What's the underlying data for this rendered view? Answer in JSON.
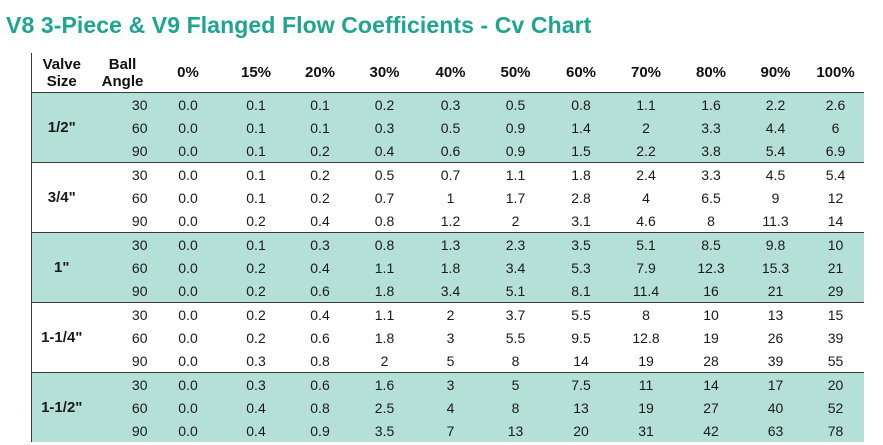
{
  "title": "V8 3-Piece & V9 Flanged Flow Coefficients - Cv Chart",
  "headers": {
    "valve_size": [
      "Valve",
      "Size"
    ],
    "ball_angle": [
      "Ball",
      "Angle"
    ],
    "percents": [
      "0%",
      "15%",
      "20%",
      "30%",
      "40%",
      "50%",
      "60%",
      "70%",
      "80%",
      "90%",
      "100%"
    ]
  },
  "groups": [
    {
      "size": "1/2\"",
      "rows": [
        {
          "angle": "30",
          "values": [
            "0.0",
            "0.1",
            "0.1",
            "0.2",
            "0.3",
            "0.5",
            "0.8",
            "1.1",
            "1.6",
            "2.2",
            "2.6"
          ]
        },
        {
          "angle": "60",
          "values": [
            "0.0",
            "0.1",
            "0.1",
            "0.3",
            "0.5",
            "0.9",
            "1.4",
            "2",
            "3.3",
            "4.4",
            "6"
          ]
        },
        {
          "angle": "90",
          "values": [
            "0.0",
            "0.1",
            "0.2",
            "0.4",
            "0.6",
            "0.9",
            "1.5",
            "2.2",
            "3.8",
            "5.4",
            "6.9"
          ]
        }
      ]
    },
    {
      "size": "3/4\"",
      "rows": [
        {
          "angle": "30",
          "values": [
            "0.0",
            "0.1",
            "0.2",
            "0.5",
            "0.7",
            "1.1",
            "1.8",
            "2.4",
            "3.3",
            "4.5",
            "5.4"
          ]
        },
        {
          "angle": "60",
          "values": [
            "0.0",
            "0.1",
            "0.2",
            "0.7",
            "1",
            "1.7",
            "2.8",
            "4",
            "6.5",
            "9",
            "12"
          ]
        },
        {
          "angle": "90",
          "values": [
            "0.0",
            "0.2",
            "0.4",
            "0.8",
            "1.2",
            "2",
            "3.1",
            "4.6",
            "8",
            "11.3",
            "14"
          ]
        }
      ]
    },
    {
      "size": "1\"",
      "rows": [
        {
          "angle": "30",
          "values": [
            "0.0",
            "0.1",
            "0.3",
            "0.8",
            "1.3",
            "2.3",
            "3.5",
            "5.1",
            "8.5",
            "9.8",
            "10"
          ]
        },
        {
          "angle": "60",
          "values": [
            "0.0",
            "0.2",
            "0.4",
            "1.1",
            "1.8",
            "3.4",
            "5.3",
            "7.9",
            "12.3",
            "15.3",
            "21"
          ]
        },
        {
          "angle": "90",
          "values": [
            "0.0",
            "0.2",
            "0.6",
            "1.8",
            "3.4",
            "5.1",
            "8.1",
            "11.4",
            "16",
            "21",
            "29"
          ]
        }
      ]
    },
    {
      "size": "1-1/4\"",
      "rows": [
        {
          "angle": "30",
          "values": [
            "0.0",
            "0.2",
            "0.4",
            "1.1",
            "2",
            "3.7",
            "5.5",
            "8",
            "10",
            "13",
            "15"
          ]
        },
        {
          "angle": "60",
          "values": [
            "0.0",
            "0.2",
            "0.6",
            "1.8",
            "3",
            "5.5",
            "9.5",
            "12.8",
            "19",
            "26",
            "39"
          ]
        },
        {
          "angle": "90",
          "values": [
            "0.0",
            "0.3",
            "0.8",
            "2",
            "5",
            "8",
            "14",
            "19",
            "28",
            "39",
            "55"
          ]
        }
      ]
    },
    {
      "size": "1-1/2\"",
      "rows": [
        {
          "angle": "30",
          "values": [
            "0.0",
            "0.3",
            "0.6",
            "1.6",
            "3",
            "5",
            "7.5",
            "11",
            "14",
            "17",
            "20"
          ]
        },
        {
          "angle": "60",
          "values": [
            "0.0",
            "0.4",
            "0.8",
            "2.5",
            "4",
            "8",
            "13",
            "19",
            "27",
            "40",
            "52"
          ]
        },
        {
          "angle": "90",
          "values": [
            "0.0",
            "0.4",
            "0.9",
            "3.5",
            "7",
            "13",
            "20",
            "31",
            "42",
            "63",
            "78"
          ]
        }
      ]
    }
  ],
  "colors": {
    "title": "#1ea48f",
    "shade": "#b4e0d8"
  }
}
